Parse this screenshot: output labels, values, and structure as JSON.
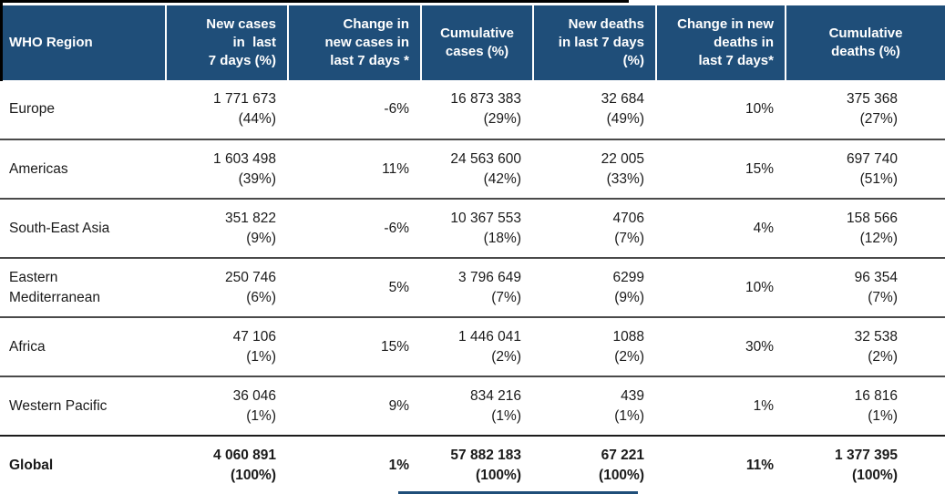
{
  "table": {
    "colors": {
      "header_background": "#1f4e79",
      "header_text": "#ffffff",
      "body_text": "#1a1a1a",
      "row_divider": "#4a4a4a"
    },
    "columns": [
      {
        "id": "who_region",
        "label": "WHO Region"
      },
      {
        "id": "new_cases",
        "label": "New cases\nin  last\n7 days (%)"
      },
      {
        "id": "change_new_cases",
        "label": "Change in\nnew cases in\nlast 7 days *"
      },
      {
        "id": "cumulative_cases",
        "label": "Cumulative\ncases (%)"
      },
      {
        "id": "new_deaths",
        "label": "New deaths\nin last 7 days\n(%)"
      },
      {
        "id": "change_new_deaths",
        "label": "Change in new\ndeaths in\nlast 7 days*"
      },
      {
        "id": "cumulative_deaths",
        "label": "Cumulative\ndeaths (%)"
      }
    ],
    "rows": [
      {
        "region_id": "europe",
        "cells": [
          "Europe",
          "1 771 673\n(44%)",
          "-6%",
          "16 873 383\n(29%)",
          "32 684\n(49%)",
          "10%",
          "375 368\n(27%)"
        ]
      },
      {
        "region_id": "americas",
        "cells": [
          "Americas",
          "1 603 498\n(39%)",
          "11%",
          "24 563 600\n(42%)",
          "22 005\n(33%)",
          "15%",
          "697 740\n(51%)"
        ]
      },
      {
        "region_id": "south-east-asia",
        "cells": [
          "South-East Asia",
          "351 822\n(9%)",
          "-6%",
          "10 367 553\n(18%)",
          "4706\n(7%)",
          "4%",
          "158 566\n(12%)"
        ]
      },
      {
        "region_id": "eastern-mediterranean",
        "cells": [
          "Eastern\nMediterranean",
          "250 746\n(6%)",
          "5%",
          "3 796 649\n(7%)",
          "6299\n(9%)",
          "10%",
          "96 354\n(7%)"
        ]
      },
      {
        "region_id": "africa",
        "cells": [
          "Africa",
          "47 106\n(1%)",
          "15%",
          "1 446 041\n(2%)",
          "1088\n(2%)",
          "30%",
          "32 538\n(2%)"
        ]
      },
      {
        "region_id": "western-pacific",
        "cells": [
          "Western Pacific",
          "36 046\n(1%)",
          "9%",
          "834 216\n(1%)",
          "439\n(1%)",
          "1%",
          "16 816\n(1%)"
        ]
      },
      {
        "region_id": "global",
        "bold": true,
        "cells": [
          "Global",
          "4 060 891\n(100%)",
          "1%",
          "57 882 183\n(100%)",
          "67 221\n(100%)",
          "11%",
          "1 377 395\n(100%)"
        ]
      }
    ]
  }
}
